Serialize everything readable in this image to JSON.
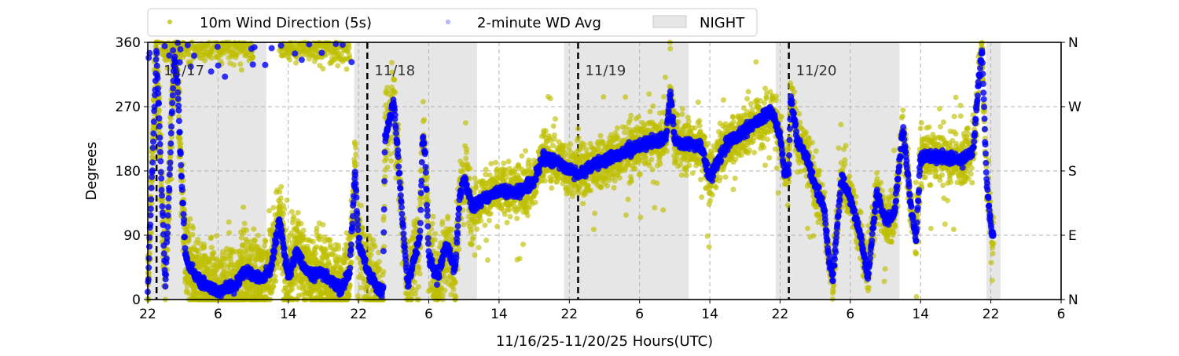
{
  "chart_data": {
    "type": "scatter",
    "title": "",
    "xlabel": "11/16/25-11/20/25  Hours(UTC)",
    "ylabel": "Degrees",
    "x_units": "hours since 11/16/25 22:00 UTC",
    "xlim": [
      0,
      104
    ],
    "ylim": [
      0,
      360
    ],
    "x_ticks": [
      0,
      8,
      16,
      24,
      32,
      40,
      48,
      56,
      64,
      72,
      80,
      88,
      96,
      104
    ],
    "x_tick_labels": [
      "22",
      "6",
      "14",
      "22",
      "6",
      "14",
      "22",
      "6",
      "14",
      "22",
      "6",
      "14",
      "22",
      "6"
    ],
    "y_ticks": [
      0,
      90,
      180,
      270,
      360
    ],
    "y_tick_labels": [
      "0",
      "90",
      "180",
      "270",
      "360"
    ],
    "y2_tick_labels": [
      "N",
      "E",
      "S",
      "W",
      "N"
    ],
    "grid": true,
    "legend_placement": "top-center",
    "legend": [
      {
        "label": "10m Wind Direction (5s)",
        "color": "#bfbf00",
        "kind": "marker"
      },
      {
        "label": "2-minute WD Avg",
        "color": "#0000ff",
        "kind": "marker"
      },
      {
        "label": "NIGHT",
        "color": "#e6e6e6",
        "kind": "patch"
      }
    ],
    "night_periods": [
      [
        -0.5,
        13.5
      ],
      [
        23.5,
        37.5
      ],
      [
        47.4,
        61.6
      ],
      [
        71.5,
        85.6
      ],
      [
        95.5,
        97.1
      ]
    ],
    "day_markers": [
      {
        "x": 1,
        "label": "11/17"
      },
      {
        "x": 25,
        "label": "11/18"
      },
      {
        "x": 49,
        "label": "11/19"
      },
      {
        "x": 73,
        "label": "11/20"
      }
    ],
    "series": [
      {
        "name": "2-minute WD Avg",
        "color": "#0000ff",
        "approx_trajectory": [
          [
            0,
            10
          ],
          [
            1,
            350
          ],
          [
            2,
            20
          ],
          [
            3,
            340
          ],
          [
            3.4,
            300
          ],
          [
            3.8,
            180
          ],
          [
            4.3,
            60
          ],
          [
            5,
            40
          ],
          [
            6,
            25
          ],
          [
            8,
            12
          ],
          [
            10,
            20
          ],
          [
            11,
            40
          ],
          [
            13,
            30
          ],
          [
            14,
            40
          ],
          [
            15,
            110
          ],
          [
            16,
            30
          ],
          [
            17,
            70
          ],
          [
            18,
            40
          ],
          [
            20,
            35
          ],
          [
            22,
            15
          ],
          [
            23,
            40
          ],
          [
            23.6,
            180
          ],
          [
            24,
            80
          ],
          [
            25,
            40
          ],
          [
            26,
            20
          ],
          [
            26.8,
            10
          ],
          [
            27,
            220
          ],
          [
            28,
            280
          ],
          [
            28.5,
            200
          ],
          [
            29,
            110
          ],
          [
            29.6,
            20
          ],
          [
            30,
            40
          ],
          [
            31,
            90
          ],
          [
            31.3,
            230
          ],
          [
            31.6,
            200
          ],
          [
            32,
            60
          ],
          [
            33,
            30
          ],
          [
            34,
            80
          ],
          [
            35,
            40
          ],
          [
            35.5,
            140
          ],
          [
            36,
            170
          ],
          [
            37,
            130
          ],
          [
            38,
            140
          ],
          [
            40,
            150
          ],
          [
            42,
            150
          ],
          [
            44,
            165
          ],
          [
            45,
            200
          ],
          [
            47,
            190
          ],
          [
            49,
            175
          ],
          [
            51,
            190
          ],
          [
            54,
            205
          ],
          [
            57,
            220
          ],
          [
            59,
            225
          ],
          [
            59.5,
            290
          ],
          [
            60,
            220
          ],
          [
            63,
            215
          ],
          [
            64,
            170
          ],
          [
            66,
            220
          ],
          [
            69,
            245
          ],
          [
            71,
            265
          ],
          [
            72,
            230
          ],
          [
            72.5,
            175
          ],
          [
            73,
            180
          ],
          [
            73.2,
            280
          ],
          [
            74,
            220
          ],
          [
            75,
            200
          ],
          [
            76,
            160
          ],
          [
            77,
            130
          ],
          [
            77.5,
            60
          ],
          [
            78,
            30
          ],
          [
            79,
            170
          ],
          [
            80,
            140
          ],
          [
            81,
            100
          ],
          [
            82,
            30
          ],
          [
            83,
            150
          ],
          [
            84,
            110
          ],
          [
            85,
            120
          ],
          [
            86,
            240
          ],
          [
            87,
            120
          ],
          [
            87.5,
            85
          ],
          [
            88,
            200
          ],
          [
            90,
            200
          ],
          [
            93,
            195
          ],
          [
            94,
            210
          ],
          [
            94.5,
            290
          ],
          [
            95,
            350
          ],
          [
            95.5,
            170
          ],
          [
            96,
            100
          ],
          [
            96.3,
            90
          ]
        ]
      },
      {
        "name": "10m Wind Direction (5s)",
        "color": "#bfbf00",
        "spread_deg": 30,
        "note_visible": "scatter around the 2-minute average, with many points near 330-360 during 11/16 22h - 11/17 22h"
      }
    ]
  }
}
